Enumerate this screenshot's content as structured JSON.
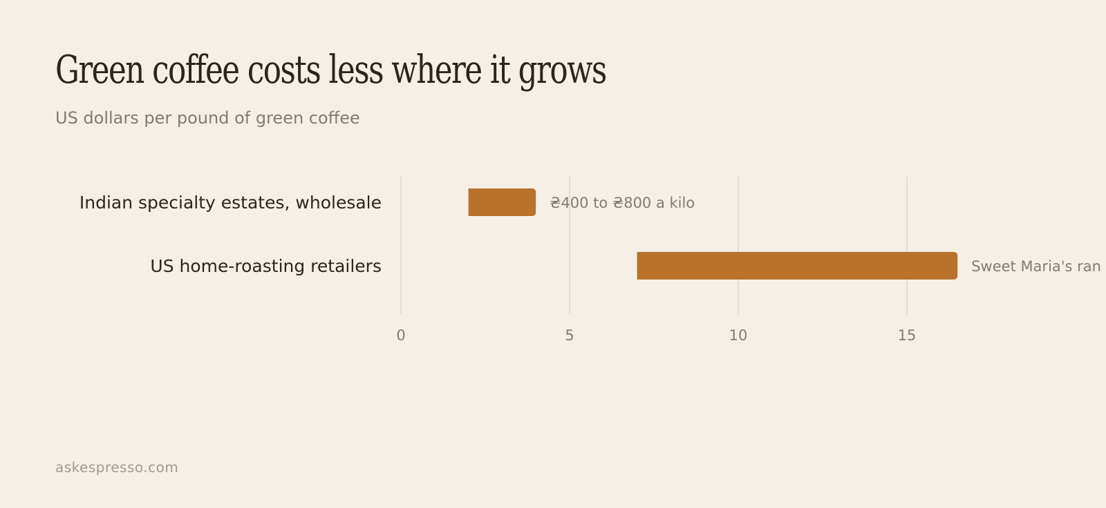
{
  "header": {
    "title": "Green coffee costs less where it grows",
    "subtitle": "US dollars per pound of green coffee"
  },
  "footer": {
    "source": "askespresso.com"
  },
  "colors": {
    "background": "#f5f0e6",
    "bar": "#b8722c",
    "grid": "#e4ddd0",
    "category_text": "#2e241e",
    "muted_text": "#857a71"
  },
  "chart_data": {
    "type": "bar",
    "orientation": "horizontal",
    "categories": [
      "Indian specialty estates, wholesale",
      "US home-roasting retailers"
    ],
    "ranges": [
      [
        2.0,
        4.0
      ],
      [
        7.0,
        16.5
      ]
    ],
    "annotations": [
      "₴400 to ₴800 a kilo",
      "Sweet Maria's ran"
    ],
    "xlim": [
      0,
      20
    ],
    "xticks": [
      0,
      5,
      10,
      15
    ],
    "grid": true,
    "title": "Green coffee costs less where it grows",
    "subtitle": "US dollars per pound of green coffee",
    "xlabel": "",
    "ylabel": ""
  }
}
